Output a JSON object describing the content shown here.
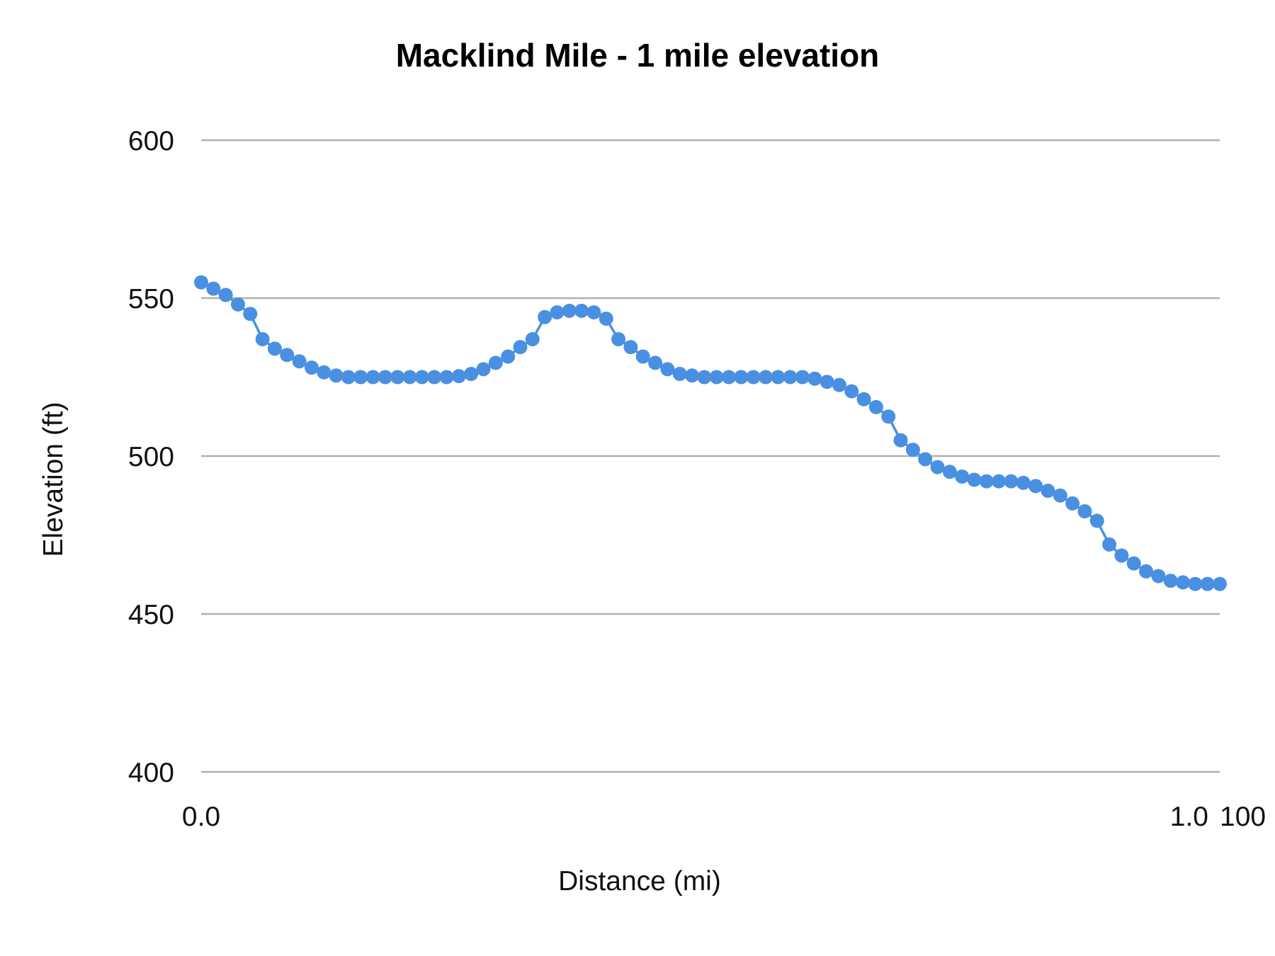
{
  "chart_data": {
    "type": "line",
    "title": "Macklind Mile - 1 mile elevation",
    "xlabel": "Distance (mi)",
    "ylabel": "Elevation (ft)",
    "xlim": [
      0,
      1
    ],
    "ylim": [
      400,
      600
    ],
    "y_ticks": [
      400,
      450,
      500,
      550,
      600
    ],
    "y_tick_labels": [
      "400",
      "450",
      "500",
      "550",
      "600"
    ],
    "x_tick_labels": [
      "0.0",
      "1.0",
      "100"
    ],
    "grid": "horizontal",
    "markers": true,
    "series_color": "#4a90e2",
    "grid_color": "#b0b0b0",
    "values": [
      555,
      553,
      551,
      548,
      545,
      537,
      534,
      532,
      530,
      528,
      526.5,
      525.5,
      525,
      525,
      525,
      525,
      525,
      525,
      525,
      525,
      525,
      525.3,
      526,
      527.5,
      529.5,
      531.5,
      534.5,
      537,
      544,
      545.5,
      546,
      546,
      545.5,
      543.5,
      537,
      534.5,
      531.5,
      529.5,
      527.5,
      526,
      525.5,
      525,
      525,
      525,
      525,
      525,
      525,
      525,
      525,
      525,
      524.5,
      523.5,
      522.5,
      520.5,
      518,
      515.5,
      512.5,
      505,
      502,
      499,
      496.5,
      495,
      493.5,
      492.5,
      492,
      492,
      492,
      491.5,
      490.5,
      489,
      487.5,
      485,
      482.5,
      479.5,
      472,
      468.5,
      466,
      463.5,
      462,
      460.5,
      460,
      459.5,
      459.5,
      459.5
    ]
  }
}
